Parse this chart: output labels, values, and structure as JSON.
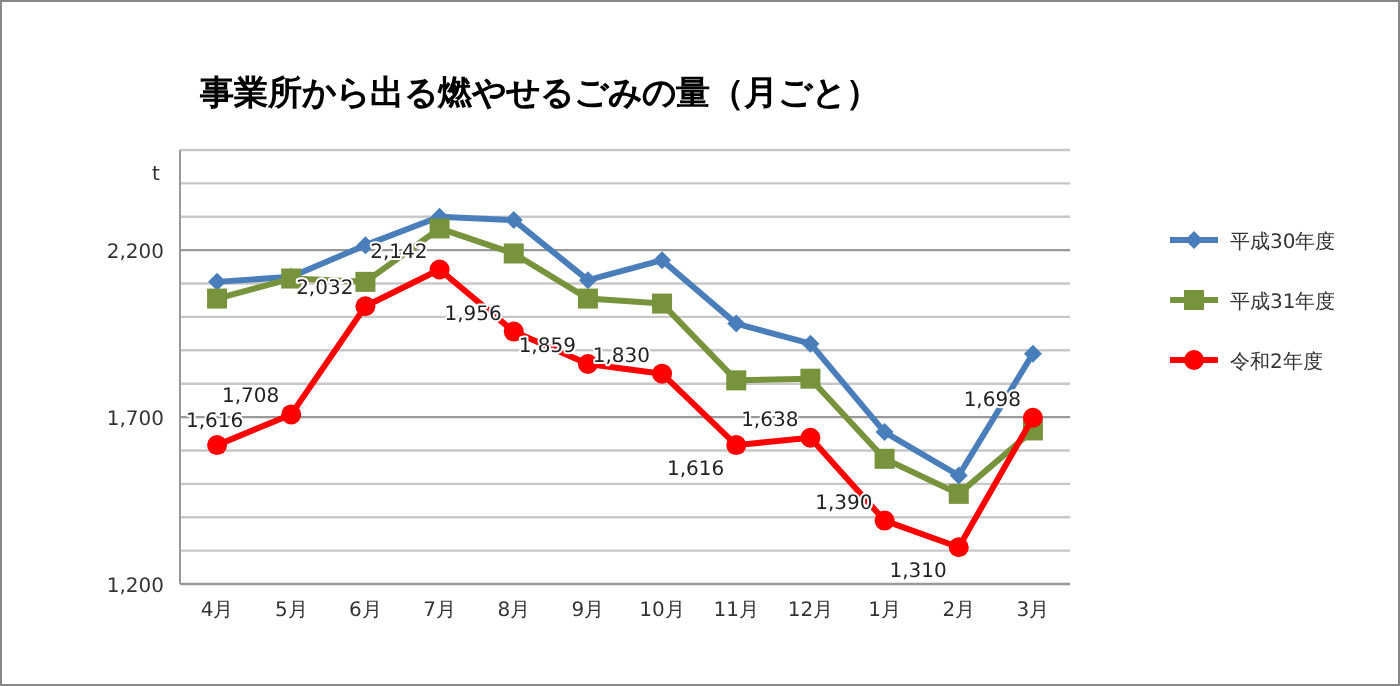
{
  "chart_data": {
    "type": "line",
    "title": "事業所から出る燃やせるごみの量（月ごと）",
    "ylabel": "t",
    "categories": [
      "4月",
      "5月",
      "6月",
      "7月",
      "8月",
      "9月",
      "10月",
      "11月",
      "12月",
      "1月",
      "2月",
      "3月"
    ],
    "series": [
      {
        "name": "平成30年度",
        "color": "#4a7ebb",
        "marker": "diamond",
        "values": [
          2105,
          2120,
          2215,
          2300,
          2290,
          2110,
          2170,
          1980,
          1920,
          1655,
          1525,
          1890
        ]
      },
      {
        "name": "平成31年度",
        "color": "#77933c",
        "marker": "square",
        "values": [
          2055,
          2115,
          2105,
          2265,
          2190,
          2055,
          2040,
          1810,
          1815,
          1575,
          1470,
          1660
        ]
      },
      {
        "name": "令和2年度",
        "color": "#ff0000",
        "marker": "circle",
        "values": [
          1616,
          1708,
          2032,
          2142,
          1956,
          1859,
          1830,
          1616,
          1638,
          1390,
          1310,
          1698
        ],
        "value_labels": [
          "1,616",
          "1,708",
          "2,032",
          "2,142",
          "1,956",
          "1,859",
          "1,830",
          "1,616",
          "1,638",
          "1,390",
          "1,310",
          "1,698"
        ]
      }
    ],
    "ylim": [
      1200,
      2500
    ],
    "yticks": [
      {
        "value": 1200,
        "label": "1,200"
      },
      {
        "value": 1300,
        "label": null
      },
      {
        "value": 1400,
        "label": null
      },
      {
        "value": 1500,
        "label": null
      },
      {
        "value": 1600,
        "label": null
      },
      {
        "value": 1700,
        "label": "1,700"
      },
      {
        "value": 1800,
        "label": null
      },
      {
        "value": 1900,
        "label": null
      },
      {
        "value": 2000,
        "label": null
      },
      {
        "value": 2100,
        "label": null
      },
      {
        "value": 2200,
        "label": "2,200"
      },
      {
        "value": 2300,
        "label": null
      },
      {
        "value": 2400,
        "label": null
      },
      {
        "value": 2500,
        "label": null
      }
    ],
    "grid": "y",
    "legend": "right"
  }
}
